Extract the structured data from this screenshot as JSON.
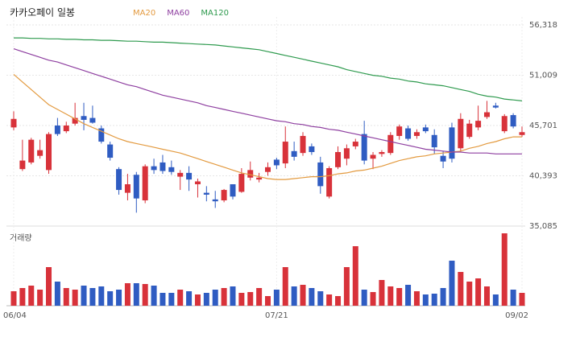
{
  "chart_data": {
    "type": "candlestick",
    "title": "카카오페이 일봉",
    "volume_label": "거래량",
    "categories": [
      "06/04",
      null,
      null,
      null,
      null,
      null,
      null,
      null,
      null,
      null,
      null,
      null,
      null,
      null,
      null,
      null,
      null,
      null,
      null,
      null,
      null,
      null,
      null,
      null,
      null,
      null,
      null,
      null,
      null,
      null,
      "07/21",
      null,
      null,
      null,
      null,
      null,
      null,
      null,
      null,
      null,
      null,
      null,
      null,
      null,
      null,
      null,
      null,
      null,
      null,
      null,
      null,
      null,
      null,
      null,
      null,
      null,
      null,
      null,
      "09/02"
    ],
    "open": [
      45500,
      41100,
      41800,
      42500,
      41000,
      45700,
      45100,
      45900,
      46700,
      46500,
      45400,
      43700,
      41100,
      38600,
      40500,
      37800,
      41400,
      41800,
      41300,
      40300,
      40700,
      39500,
      38600,
      37900,
      37800,
      39500,
      38700,
      40200,
      40000,
      40800,
      42100,
      41700,
      43000,
      42800,
      43500,
      41800,
      38200,
      41300,
      42200,
      43500,
      44800,
      42200,
      42700,
      42800,
      44600,
      45400,
      44600,
      45500,
      44700,
      42500,
      45500,
      43300,
      44500,
      45500,
      46600,
      47800,
      45100,
      46800,
      44700
    ],
    "high": [
      47200,
      44200,
      44400,
      44200,
      45000,
      46500,
      46100,
      48100,
      48100,
      47800,
      45700,
      44000,
      41300,
      40600,
      40800,
      41600,
      42200,
      42600,
      42000,
      41000,
      41400,
      40100,
      39300,
      38800,
      39000,
      39500,
      41200,
      41900,
      40700,
      41800,
      42300,
      45600,
      44000,
      45000,
      43800,
      42400,
      41400,
      43500,
      43700,
      44300,
      46200,
      42900,
      43100,
      45000,
      45800,
      45700,
      45300,
      45800,
      45300,
      43000,
      46000,
      47000,
      46300,
      47800,
      48300,
      48100,
      46900,
      47000,
      45600
    ],
    "low": [
      45200,
      40900,
      41600,
      42200,
      40600,
      44600,
      44900,
      45700,
      45200,
      45900,
      43800,
      42000,
      38400,
      37800,
      36500,
      37500,
      40600,
      40600,
      40500,
      38900,
      38800,
      38100,
      37700,
      37000,
      37600,
      37900,
      38600,
      39900,
      39700,
      40400,
      41100,
      41200,
      42000,
      42500,
      42600,
      38500,
      38000,
      41100,
      41500,
      43200,
      41600,
      41100,
      42400,
      42600,
      44200,
      44100,
      44300,
      44900,
      42700,
      41200,
      41800,
      43000,
      44300,
      45200,
      46400,
      47500,
      44900,
      45400,
      44500
    ],
    "close": [
      46400,
      42000,
      44200,
      43100,
      44800,
      44800,
      45700,
      46500,
      46300,
      46000,
      44000,
      42300,
      38900,
      39500,
      38000,
      41400,
      41000,
      40900,
      40800,
      40700,
      40000,
      39800,
      38400,
      37700,
      38900,
      38200,
      40600,
      41000,
      40200,
      41300,
      41500,
      44000,
      42400,
      44600,
      42900,
      39300,
      41200,
      42900,
      43300,
      44000,
      42000,
      42600,
      42900,
      44700,
      45600,
      44300,
      45000,
      45100,
      43400,
      41900,
      42200,
      46400,
      45900,
      46200,
      47100,
      47600,
      46700,
      45600,
      45000
    ],
    "volume": [
      18,
      22,
      25,
      20,
      48,
      30,
      22,
      20,
      25,
      22,
      24,
      18,
      20,
      28,
      28,
      27,
      25,
      16,
      16,
      20,
      18,
      14,
      16,
      20,
      22,
      24,
      16,
      17,
      22,
      12,
      20,
      48,
      24,
      26,
      22,
      18,
      14,
      12,
      48,
      74,
      20,
      17,
      32,
      24,
      22,
      26,
      18,
      14,
      15,
      22,
      56,
      42,
      30,
      34,
      24,
      14,
      90,
      20,
      16
    ],
    "series": [
      {
        "name": "MA20",
        "color": "#e39a3f",
        "values": [
          51100,
          50300,
          49500,
          48700,
          47900,
          47400,
          46900,
          46400,
          45900,
          45500,
          45100,
          44700,
          44300,
          44000,
          43800,
          43600,
          43400,
          43200,
          43000,
          42800,
          42500,
          42200,
          41900,
          41600,
          41300,
          41000,
          40700,
          40500,
          40300,
          40100,
          40000,
          40000,
          40100,
          40200,
          40300,
          40300,
          40400,
          40600,
          40700,
          40900,
          41000,
          41200,
          41400,
          41700,
          42000,
          42200,
          42400,
          42500,
          42700,
          42800,
          42900,
          43000,
          43300,
          43500,
          43800,
          44000,
          44300,
          44500,
          44500
        ]
      },
      {
        "name": "MA60",
        "color": "#8e3fa0",
        "values": [
          53800,
          53500,
          53200,
          52900,
          52600,
          52400,
          52100,
          51800,
          51500,
          51200,
          50900,
          50600,
          50300,
          50000,
          49800,
          49500,
          49200,
          48900,
          48700,
          48500,
          48300,
          48100,
          47800,
          47600,
          47400,
          47200,
          47000,
          46800,
          46600,
          46400,
          46200,
          46100,
          45900,
          45800,
          45600,
          45500,
          45300,
          45200,
          45000,
          44800,
          44600,
          44400,
          44200,
          44000,
          43800,
          43600,
          43400,
          43200,
          43100,
          43000,
          42900,
          42900,
          42800,
          42800,
          42800,
          42700,
          42700,
          42700,
          42700
        ]
      },
      {
        "name": "MA120",
        "color": "#2e9a4e",
        "values": [
          54950,
          54950,
          54900,
          54900,
          54850,
          54850,
          54800,
          54800,
          54750,
          54750,
          54700,
          54700,
          54650,
          54600,
          54600,
          54550,
          54500,
          54500,
          54450,
          54400,
          54350,
          54300,
          54250,
          54200,
          54100,
          54000,
          53900,
          53800,
          53700,
          53500,
          53300,
          53100,
          52900,
          52700,
          52500,
          52300,
          52100,
          51900,
          51600,
          51400,
          51200,
          51000,
          50900,
          50700,
          50600,
          50400,
          50300,
          50100,
          50000,
          49900,
          49700,
          49500,
          49300,
          49000,
          48800,
          48700,
          48500,
          48400,
          48300
        ]
      }
    ],
    "up_color": "#d8323a",
    "down_color": "#2f5cc2",
    "ylim": [
      35085,
      56318
    ],
    "yticks": [
      {
        "value": 35085,
        "label": "35,085"
      },
      {
        "value": 40393,
        "label": "40,393"
      },
      {
        "value": 45701,
        "label": "45,701"
      },
      {
        "value": 51009,
        "label": "51,009"
      },
      {
        "value": 56318,
        "label": "56,318"
      }
    ],
    "volume_lim": [
      0,
      90
    ],
    "grid": true
  }
}
